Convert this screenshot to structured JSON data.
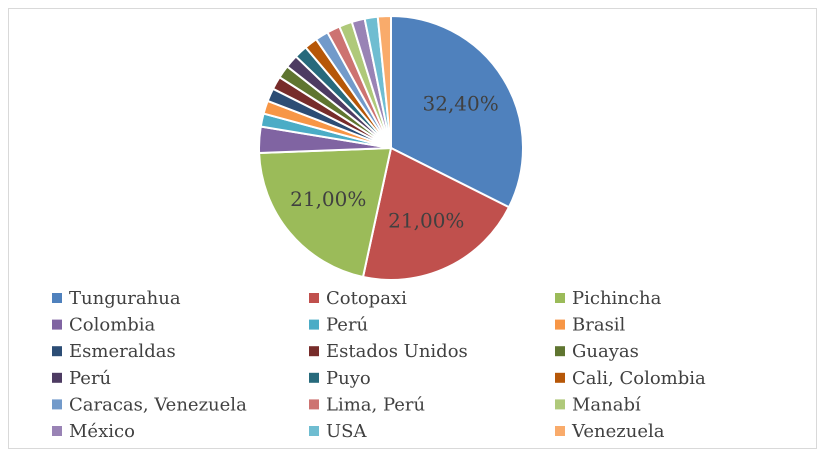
{
  "chart_data": {
    "type": "pie",
    "categories": [
      "Tungurahua",
      "Cotopaxi",
      "Pichincha",
      "Colombia",
      "Perú",
      "Brasil",
      "Esmeraldas",
      "Estados Unidos",
      "Guayas",
      "Perú",
      "Puyo",
      "Cali, Colombia",
      "Caracas, Venezuela",
      "Lima, Perú",
      "Manabí",
      "México",
      "USA",
      "Venezuela"
    ],
    "values": [
      32.4,
      21,
      21,
      3.2,
      1.6,
      1.6,
      1.6,
      1.6,
      1.6,
      1.6,
      1.6,
      1.6,
      1.6,
      1.6,
      1.6,
      1.6,
      1.6,
      1.6
    ],
    "value_labels": [
      "32,40%",
      "21,00%",
      "21,00%",
      null,
      null,
      null,
      null,
      null,
      null,
      null,
      null,
      null,
      null,
      null,
      null,
      null,
      null,
      null
    ],
    "colors": [
      "#4f81bd",
      "#c0504d",
      "#9bbb59",
      "#8064a2",
      "#4bacc6",
      "#f79646",
      "#2c4d75",
      "#772c2a",
      "#5f7530",
      "#4d3b62",
      "#276a7c",
      "#b65708",
      "#729aca",
      "#cd7371",
      "#afc97a",
      "#9983b5",
      "#6fbdd1",
      "#f9ab6b"
    ],
    "legend": "bottom"
  }
}
